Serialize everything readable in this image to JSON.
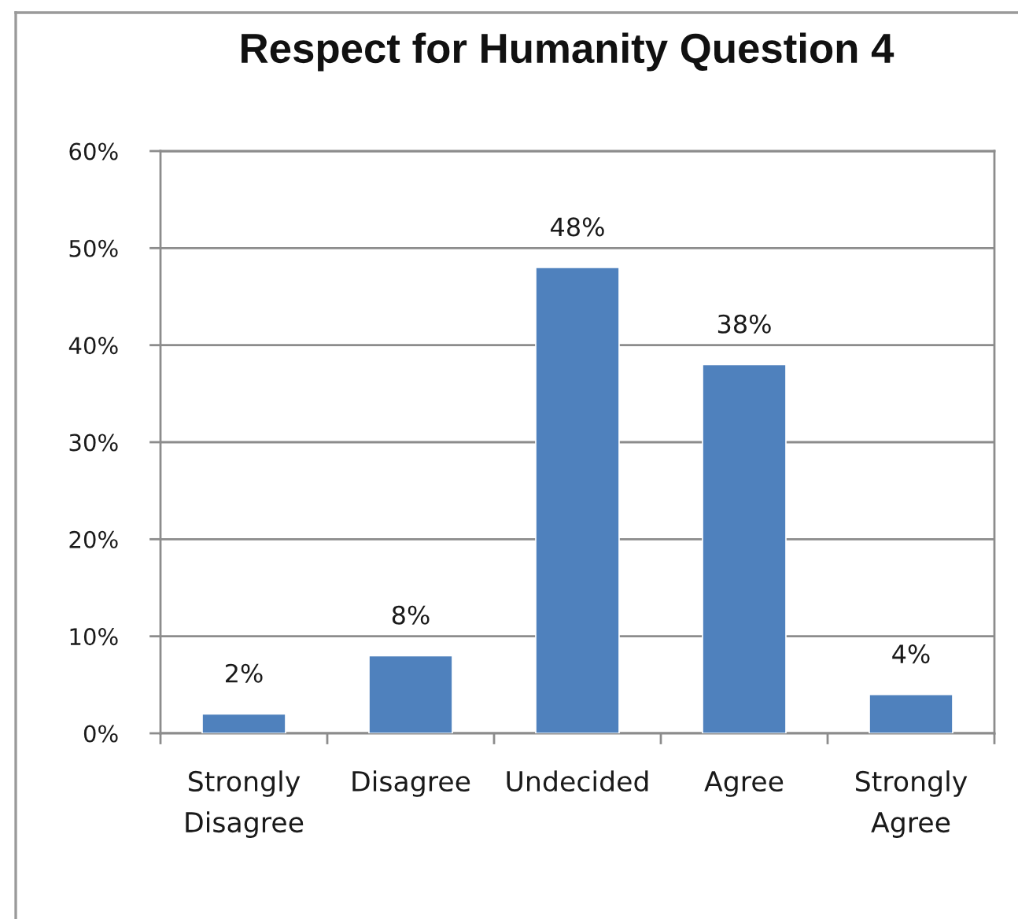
{
  "chart_data": {
    "type": "bar",
    "title": "Respect for Humanity Question 4",
    "categories": [
      "Strongly\nDisagree",
      "Disagree",
      "Undecided",
      "Agree",
      "Strongly\nAgree"
    ],
    "values": [
      2,
      8,
      48,
      38,
      4
    ],
    "value_labels": [
      "2%",
      "8%",
      "48%",
      "38%",
      "4%"
    ],
    "color": "#4f81bd",
    "ylim": [
      0,
      60
    ],
    "yticks": [
      {
        "value": 0,
        "label": "0%"
      },
      {
        "value": 10,
        "label": "10%"
      },
      {
        "value": 20,
        "label": "20%"
      },
      {
        "value": 30,
        "label": "30%"
      },
      {
        "value": 40,
        "label": "40%"
      },
      {
        "value": 50,
        "label": "50%"
      },
      {
        "value": 60,
        "label": "60%"
      }
    ],
    "grid": "y"
  }
}
